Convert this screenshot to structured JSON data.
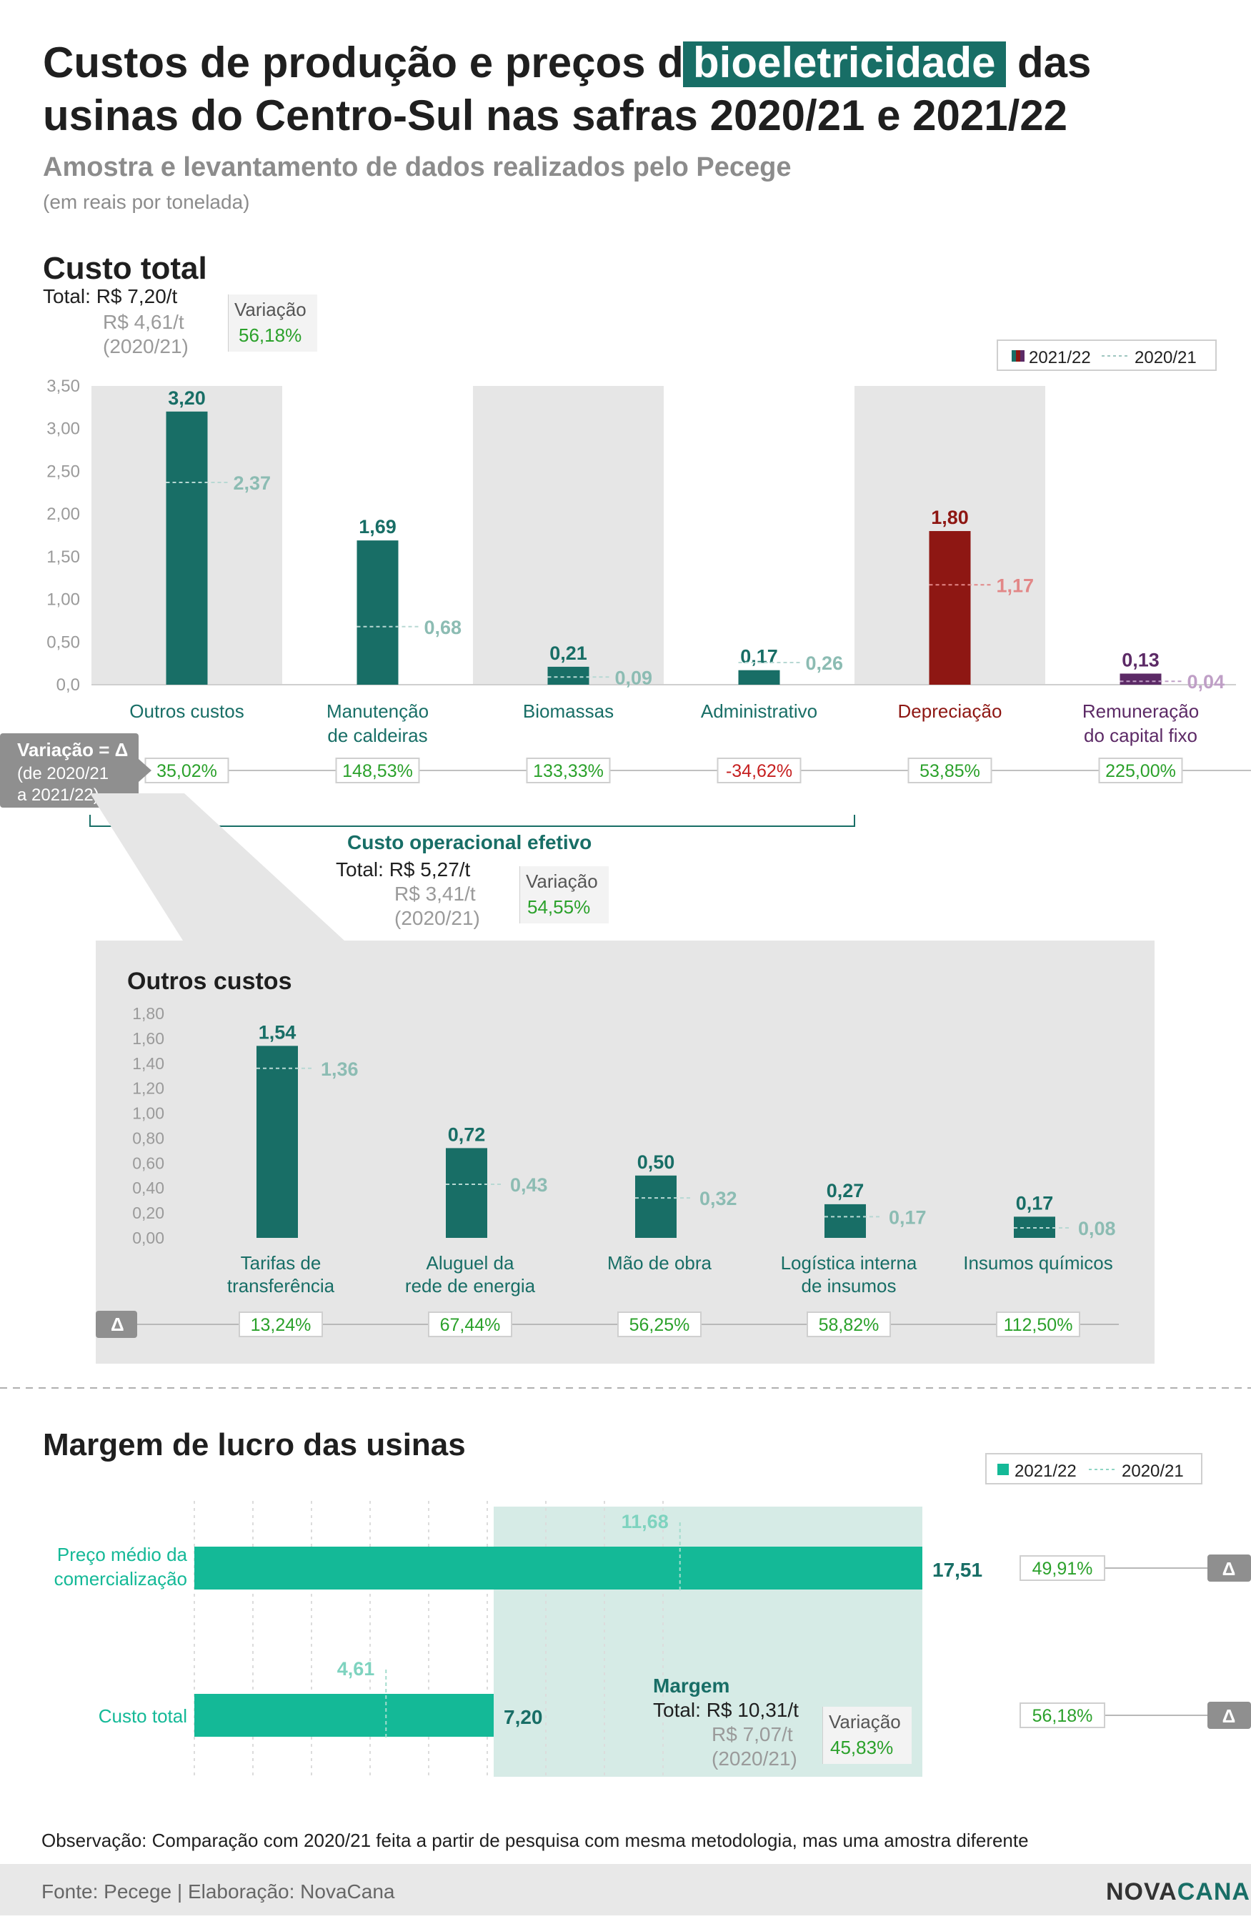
{
  "header": {
    "title_before": "Custos de produção e preços da",
    "title_highlight": "bioeletricidade",
    "title_after": "das",
    "title_line2": "usinas do Centro-Sul nas safras 2020/21 e 2021/22",
    "subtitle": "Amostra e levantamento de dados realizados pelo Pecege",
    "unit": "(em reais por tonelada)"
  },
  "colors": {
    "teal": "#186e66",
    "teal_light": "#8cbcb3",
    "red": "#8e1713",
    "red_light": "#e28787",
    "purple": "#5c2a66",
    "purple_light": "#bf9fc6",
    "bright": "#14b997",
    "green_text": "#2ba12b",
    "red_text": "#c62020",
    "band_bg": "#e6e6e6",
    "gray_tag": "#8f8f8f"
  },
  "custo_total": {
    "heading": "Custo total",
    "total_label": "Total: R$ 7,20/t",
    "prev_line1": "R$ 4,61/t",
    "prev_line2": "(2020/21)",
    "var_label": "Variação",
    "var_value": "56,18%",
    "legend_current": "2021/22",
    "legend_prev": "2020/21",
    "delta_tag_title": "Variação = Δ",
    "delta_tag_line1": "(de 2020/21",
    "delta_tag_line2": "a 2021/22)"
  },
  "chart_data": [
    {
      "type": "bar",
      "title": "Custo total",
      "ylim": [
        0,
        3.5
      ],
      "yticks": [
        "0,0",
        "0,50",
        "1,00",
        "1,50",
        "2,00",
        "2,50",
        "3,00",
        "3,50"
      ],
      "categories": [
        {
          "line1": "Outros custos",
          "line2": ""
        },
        {
          "line1": "Manutenção",
          "line2": "de caldeiras"
        },
        {
          "line1": "Biomassas",
          "line2": ""
        },
        {
          "line1": "Administrativo",
          "line2": ""
        },
        {
          "line1": "Depreciação",
          "line2": ""
        },
        {
          "line1": "Remuneração",
          "line2": "do capital fixo"
        }
      ],
      "series": [
        {
          "name": "2021/22",
          "values": [
            3.2,
            1.69,
            0.21,
            0.17,
            1.8,
            0.13
          ],
          "labels": [
            "3,20",
            "1,69",
            "0,21",
            "0,17",
            "1,80",
            "0,13"
          ]
        },
        {
          "name": "2020/21",
          "values": [
            2.37,
            0.68,
            0.09,
            0.26,
            1.17,
            0.04
          ],
          "labels": [
            "2,37",
            "0,68",
            "0,09",
            "0,26",
            "1,17",
            "0,04"
          ]
        }
      ],
      "variation": [
        "35,02%",
        "148,53%",
        "133,33%",
        "-34,62%",
        "53,85%",
        "225,00%"
      ],
      "shaded_bands": [
        0,
        2,
        4
      ],
      "bar_color_keys": [
        "teal",
        "teal",
        "teal",
        "teal",
        "red",
        "purple"
      ]
    },
    {
      "type": "bar",
      "title": "Outros custos",
      "ylim": [
        0,
        1.8
      ],
      "yticks": [
        "0,00",
        "0,20",
        "0,40",
        "0,60",
        "0,80",
        "1,00",
        "1,20",
        "1,40",
        "1,60",
        "1,80"
      ],
      "categories": [
        {
          "line1": "Tarifas de",
          "line2": "transferência"
        },
        {
          "line1": "Aluguel da",
          "line2": "rede de energia"
        },
        {
          "line1": "Mão de obra",
          "line2": ""
        },
        {
          "line1": "Logística interna",
          "line2": "de insumos"
        },
        {
          "line1": "Insumos químicos",
          "line2": ""
        }
      ],
      "series": [
        {
          "name": "2021/22",
          "values": [
            1.54,
            0.72,
            0.5,
            0.27,
            0.17
          ],
          "labels": [
            "1,54",
            "0,72",
            "0,50",
            "0,27",
            "0,17"
          ]
        },
        {
          "name": "2020/21",
          "values": [
            1.36,
            0.43,
            0.32,
            0.17,
            0.08
          ],
          "labels": [
            "1,36",
            "0,43",
            "0,32",
            "0,17",
            "0,08"
          ]
        }
      ],
      "variation": [
        "13,24%",
        "67,44%",
        "56,25%",
        "58,82%",
        "112,50%"
      ]
    },
    {
      "type": "bar",
      "orientation": "horizontal",
      "title": "Margem de lucro das usinas",
      "xlim": [
        0,
        17.51
      ],
      "categories": [
        {
          "line1": "Preço médio da",
          "line2": "comercialização"
        },
        {
          "line1": "Custo total",
          "line2": ""
        }
      ],
      "series": [
        {
          "name": "2021/22",
          "values": [
            17.51,
            7.2
          ],
          "labels": [
            "17,51",
            "7,20"
          ]
        },
        {
          "name": "2020/21",
          "values": [
            11.68,
            4.61
          ],
          "labels": [
            "11,68",
            "4,61"
          ]
        }
      ],
      "variation": [
        "49,91%",
        "56,18%"
      ]
    }
  ],
  "custo_operacional": {
    "heading": "Custo operacional efetivo",
    "total_label": "Total: R$ 5,27/t",
    "prev_line1": "R$ 3,41/t",
    "prev_line2": "(2020/21)",
    "var_label": "Variação",
    "var_value": "54,55%"
  },
  "outros_custos": {
    "heading": "Outros custos",
    "delta_symbol": "Δ"
  },
  "margem": {
    "heading": "Margem de lucro das usinas",
    "legend_current": "2021/22",
    "legend_prev": "2020/21",
    "delta_symbol": "Δ",
    "margin_heading": "Margem",
    "margin_total": "Total: R$ 10,31/t",
    "margin_prev_line1": "R$ 7,07/t",
    "margin_prev_line2": "(2020/21)",
    "var_label": "Variação",
    "var_value": "45,83%"
  },
  "footer": {
    "note": "Observação: Comparação com 2020/21 feita a partir de pesquisa com mesma metodologia, mas uma amostra diferente",
    "source": "Fonte: Pecege | Elaboração: NovaCana",
    "logo_part1": "NOVA",
    "logo_part2": "CANA"
  }
}
